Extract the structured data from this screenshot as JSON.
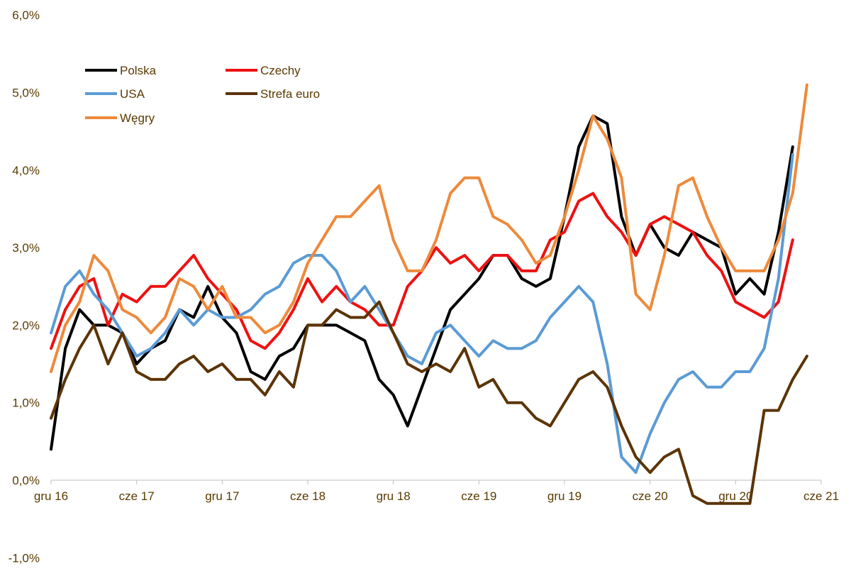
{
  "chart_data": {
    "type": "line",
    "title": "",
    "xlabel": "",
    "ylabel": "",
    "ylim": [
      -1,
      6
    ],
    "y_ticks": [
      "-1,0%",
      "0,0%",
      "1,0%",
      "2,0%",
      "3,0%",
      "4,0%",
      "5,0%",
      "6,0%"
    ],
    "y_tick_values": [
      -1,
      0,
      1,
      2,
      3,
      4,
      5,
      6
    ],
    "x_ticks": [
      "gru 16",
      "cze 17",
      "gru 17",
      "cze 18",
      "gru 18",
      "cze 19",
      "gru 19",
      "cze 20",
      "gru 20",
      "cze 21"
    ],
    "x_tick_months": [
      0,
      6,
      12,
      18,
      24,
      30,
      36,
      42,
      48,
      54
    ],
    "x_range": [
      0,
      54
    ],
    "grid": false,
    "legend": "top-left",
    "series": [
      {
        "name": "Polska",
        "color": "#000000",
        "values": [
          0.4,
          1.7,
          2.2,
          2.0,
          2.0,
          1.9,
          1.5,
          1.7,
          1.8,
          2.2,
          2.1,
          2.5,
          2.1,
          1.9,
          1.4,
          1.3,
          1.6,
          1.7,
          2.0,
          2.0,
          2.0,
          1.9,
          1.8,
          1.3,
          1.1,
          0.7,
          1.2,
          1.7,
          2.2,
          2.4,
          2.6,
          2.9,
          2.9,
          2.6,
          2.5,
          2.6,
          3.4,
          4.3,
          4.7,
          4.6,
          3.4,
          2.9,
          3.3,
          3.0,
          2.9,
          3.2,
          3.1,
          3.0,
          2.4,
          2.6,
          2.4,
          3.2,
          4.3
        ]
      },
      {
        "name": "Czechy",
        "color": "#ee1111",
        "values": [
          1.7,
          2.2,
          2.5,
          2.6,
          2.0,
          2.4,
          2.3,
          2.5,
          2.5,
          2.7,
          2.9,
          2.6,
          2.4,
          2.2,
          1.8,
          1.7,
          1.9,
          2.2,
          2.6,
          2.3,
          2.5,
          2.3,
          2.2,
          2.0,
          2.0,
          2.5,
          2.7,
          3.0,
          2.8,
          2.9,
          2.7,
          2.9,
          2.9,
          2.7,
          2.7,
          3.1,
          3.2,
          3.6,
          3.7,
          3.4,
          3.2,
          2.9,
          3.3,
          3.4,
          3.3,
          3.2,
          2.9,
          2.7,
          2.3,
          2.2,
          2.1,
          2.3,
          3.1
        ]
      },
      {
        "name": "USA",
        "color": "#5b9bd5",
        "values": [
          1.9,
          2.5,
          2.7,
          2.4,
          2.2,
          1.9,
          1.6,
          1.7,
          1.9,
          2.2,
          2.0,
          2.2,
          2.1,
          2.1,
          2.2,
          2.4,
          2.5,
          2.8,
          2.9,
          2.9,
          2.7,
          2.3,
          2.5,
          2.2,
          1.9,
          1.6,
          1.5,
          1.9,
          2.0,
          1.8,
          1.6,
          1.8,
          1.7,
          1.7,
          1.8,
          2.1,
          2.3,
          2.5,
          2.3,
          1.5,
          0.3,
          0.1,
          0.6,
          1.0,
          1.3,
          1.4,
          1.2,
          1.2,
          1.4,
          1.4,
          1.7,
          2.6,
          4.2
        ]
      },
      {
        "name": "Strefa euro",
        "color": "#5c3406",
        "values": [
          0.8,
          1.3,
          1.7,
          2.0,
          1.5,
          1.9,
          1.4,
          1.3,
          1.3,
          1.5,
          1.6,
          1.4,
          1.5,
          1.3,
          1.3,
          1.1,
          1.4,
          1.2,
          2.0,
          2.0,
          2.2,
          2.1,
          2.1,
          2.3,
          1.9,
          1.5,
          1.4,
          1.5,
          1.4,
          1.7,
          1.2,
          1.3,
          1.0,
          1.0,
          0.8,
          0.7,
          1.0,
          1.3,
          1.4,
          1.2,
          0.7,
          0.3,
          0.1,
          0.3,
          0.4,
          -0.2,
          -0.3,
          -0.3,
          -0.3,
          -0.3,
          0.9,
          0.9,
          1.3,
          1.6
        ]
      },
      {
        "name": "Węgry",
        "color": "#ed8a3c",
        "values": [
          1.4,
          2.0,
          2.3,
          2.9,
          2.7,
          2.2,
          2.1,
          1.9,
          2.1,
          2.6,
          2.5,
          2.2,
          2.5,
          2.1,
          2.1,
          1.9,
          2.0,
          2.3,
          2.8,
          3.1,
          3.4,
          3.4,
          3.6,
          3.8,
          3.1,
          2.7,
          2.7,
          3.1,
          3.7,
          3.9,
          3.9,
          3.4,
          3.3,
          3.1,
          2.8,
          2.9,
          3.4,
          4.0,
          4.7,
          4.4,
          3.9,
          2.4,
          2.2,
          2.9,
          3.8,
          3.9,
          3.4,
          3.0,
          2.7,
          2.7,
          2.7,
          3.1,
          3.7,
          5.1
        ]
      }
    ]
  }
}
